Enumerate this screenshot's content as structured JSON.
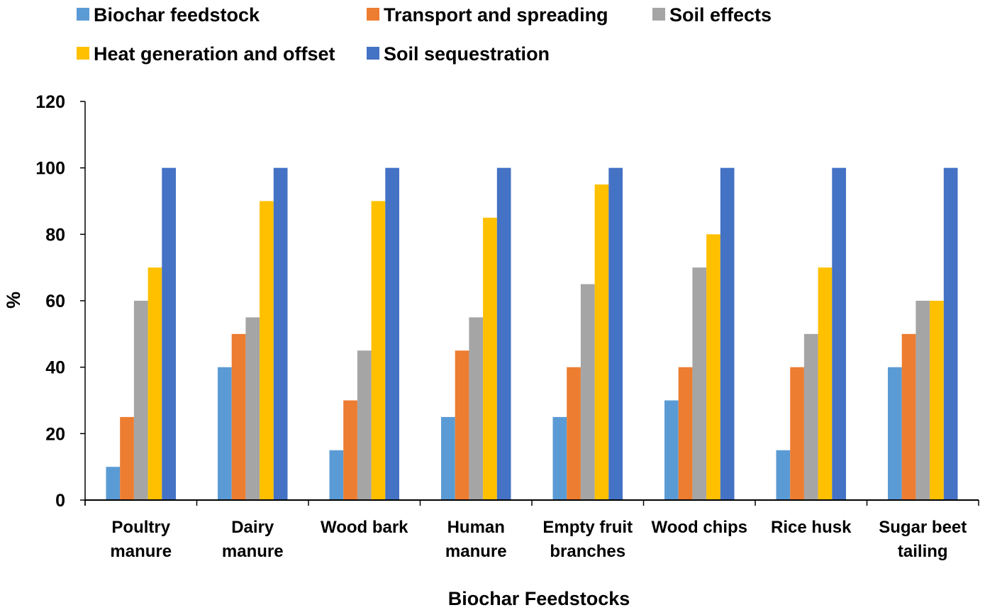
{
  "chart_data": {
    "type": "bar",
    "title": "",
    "xlabel": "Biochar Feedstocks",
    "ylabel": "%",
    "ylim": [
      0,
      120
    ],
    "yticks": [
      0,
      20,
      40,
      60,
      80,
      100,
      120
    ],
    "grid": false,
    "legend_position": "top",
    "categories": [
      [
        "Poultry",
        "manure"
      ],
      [
        "Dairy",
        "manure"
      ],
      [
        "Wood bark"
      ],
      [
        "Human",
        "manure"
      ],
      [
        "Empty fruit",
        "branches"
      ],
      [
        "Wood chips"
      ],
      [
        "Rice husk"
      ],
      [
        "Sugar beet",
        "tailing"
      ]
    ],
    "series": [
      {
        "name": "Biochar feedstock",
        "color": "#5B9BD5",
        "values": [
          10,
          40,
          15,
          25,
          25,
          30,
          15,
          40
        ]
      },
      {
        "name": "Transport and spreading",
        "color": "#ED7D31",
        "values": [
          25,
          50,
          30,
          45,
          40,
          40,
          40,
          50
        ]
      },
      {
        "name": "Soil effects",
        "color": "#A5A5A5",
        "values": [
          60,
          55,
          45,
          55,
          65,
          70,
          50,
          60
        ]
      },
      {
        "name": "Heat generation and offset",
        "color": "#FFC000",
        "values": [
          70,
          90,
          90,
          85,
          95,
          80,
          70,
          60
        ]
      },
      {
        "name": "Soil sequestration",
        "color": "#4472C4",
        "values": [
          100,
          100,
          100,
          100,
          100,
          100,
          100,
          100
        ]
      }
    ]
  }
}
